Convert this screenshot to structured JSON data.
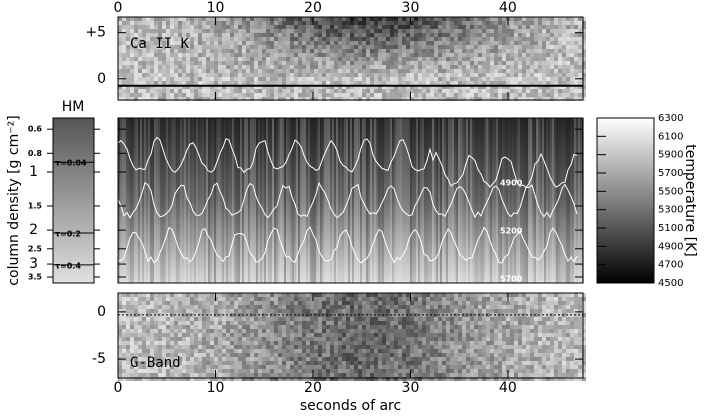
{
  "chart_data": [
    {
      "type": "image",
      "title": "Ca II K",
      "xlim": [
        0,
        47.7
      ],
      "xticks": [
        0,
        10,
        20,
        30,
        40
      ],
      "ylim": [
        -2.3,
        6.7
      ],
      "yticks": [
        {
          "value": 5,
          "label": "+5"
        },
        0
      ]
    },
    {
      "type": "depth-image",
      "ylabel": "column density [g cm⁻²]",
      "side_title": "HM",
      "xlim": [
        0,
        47.7
      ],
      "ylim": [
        0.525,
        3.76
      ],
      "log_scale": true,
      "yticks": [
        0.6,
        0.8,
        1,
        1.5,
        2,
        2.5,
        3,
        3.5
      ],
      "tau_labels": [
        {
          "label": "τ=0.04",
          "density": 0.89
        },
        {
          "label": "τ=0.2",
          "density": 2.07
        },
        {
          "label": "τ=0.4",
          "density": 3.03
        }
      ],
      "contours": [
        {
          "value": 4900,
          "label": "4900"
        },
        {
          "value": 5200,
          "label": "5200"
        },
        {
          "value": 5700,
          "label": "5700"
        }
      ],
      "colorbar": {
        "label": "temperature [K]",
        "lim": [
          4500,
          6300
        ],
        "ticks": [
          4500,
          4700,
          4900,
          5100,
          5300,
          5500,
          5700,
          5900,
          6100,
          6300
        ]
      }
    },
    {
      "type": "image",
      "title": "G-Band",
      "xlabel": "seconds of arc",
      "xlim": [
        0,
        47.7
      ],
      "xticks": [
        0,
        10,
        20,
        30,
        40
      ],
      "ylim": [
        -7.0,
        2.0
      ],
      "yticks": [
        0,
        -5
      ]
    }
  ]
}
